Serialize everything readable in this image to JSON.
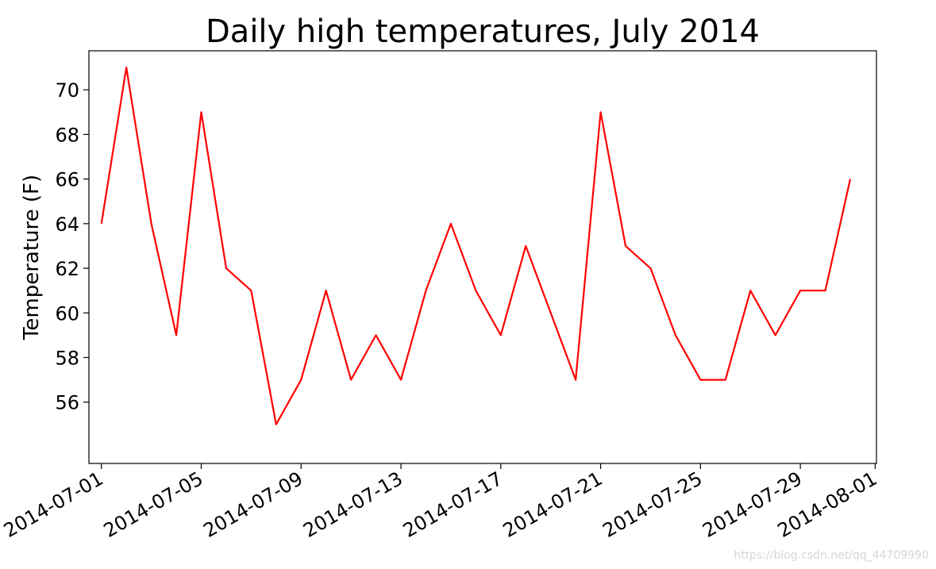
{
  "chart_data": {
    "type": "line",
    "title": "Daily high temperatures, July 2014",
    "xlabel": "",
    "ylabel": "Temperature (F)",
    "x": [
      "2014-07-01",
      "2014-07-02",
      "2014-07-03",
      "2014-07-04",
      "2014-07-05",
      "2014-07-06",
      "2014-07-07",
      "2014-07-08",
      "2014-07-09",
      "2014-07-10",
      "2014-07-11",
      "2014-07-12",
      "2014-07-13",
      "2014-07-14",
      "2014-07-15",
      "2014-07-16",
      "2014-07-17",
      "2014-07-18",
      "2014-07-19",
      "2014-07-20",
      "2014-07-21",
      "2014-07-22",
      "2014-07-23",
      "2014-07-24",
      "2014-07-25",
      "2014-07-26",
      "2014-07-27",
      "2014-07-28",
      "2014-07-29",
      "2014-07-30",
      "2014-07-31"
    ],
    "series": [
      {
        "color": "#ff0000",
        "values": [
          64,
          71,
          64,
          59,
          69,
          62,
          61,
          55,
          57,
          61,
          57,
          59,
          57,
          61,
          64,
          61,
          59,
          63,
          60,
          57,
          69,
          63,
          62,
          59,
          57,
          57,
          61,
          59,
          61,
          61,
          66
        ]
      }
    ],
    "xlim": [
      "2014-06-30",
      "2014-08-01"
    ],
    "ylim": [
      53.25,
      71.75
    ],
    "xticks": [
      "2014-07-01",
      "2014-07-05",
      "2014-07-09",
      "2014-07-13",
      "2014-07-17",
      "2014-07-21",
      "2014-07-25",
      "2014-07-29",
      "2014-08-01"
    ],
    "yticks": [
      56,
      58,
      60,
      62,
      64,
      66,
      68,
      70
    ],
    "grid": false,
    "legend": "none"
  },
  "watermark": "https://blog.csdn.net/qq_44709990"
}
